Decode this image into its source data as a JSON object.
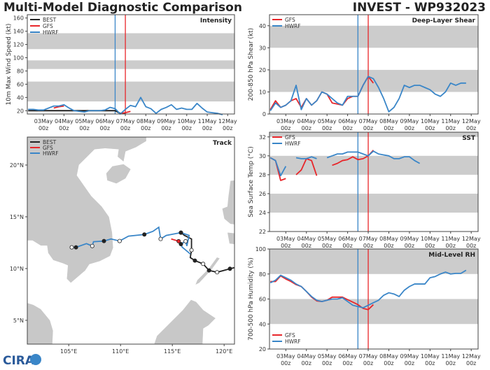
{
  "header": {
    "title": "Multi-Model Diagnostic Comparison",
    "storm": "INVEST - WP932023"
  },
  "colors": {
    "BEST": "#222222",
    "GFS": "#e8262a",
    "HWRF": "#3a86c8",
    "band": "#cccccc",
    "land": "#c8c8c8"
  },
  "time_start": "02May 06z",
  "time_step_hours": 6,
  "x_ticks": [
    "03May",
    "04May",
    "05May",
    "06May",
    "07May",
    "08May",
    "09May",
    "10May",
    "11May",
    "12May"
  ],
  "x_tick_hour": "00z",
  "xlim": [
    "02May 05z",
    "12May 08z"
  ],
  "chart_data": [
    {
      "key": "intensity",
      "type": "line",
      "title": "Intensity",
      "ylabel": "10m Max Wind Speed (kt)",
      "ylim": [
        15,
        165
      ],
      "yticks": [
        20,
        40,
        60,
        80,
        100,
        120,
        140,
        160
      ],
      "bands": [
        [
          34,
          64
        ],
        [
          83,
          96
        ],
        [
          113,
          137
        ]
      ],
      "legend": "top-left",
      "init_lines": [
        {
          "model": "HWRF",
          "time": "06May 12z"
        },
        {
          "model": "GFS",
          "time": "07May 00z"
        }
      ],
      "series": [
        {
          "name": "BEST",
          "values": [
            20,
            20,
            20,
            20,
            20,
            20,
            20,
            20,
            20,
            20,
            20,
            20,
            20,
            20,
            20,
            20,
            20,
            20,
            16,
            16
          ]
        },
        {
          "name": "GFS",
          "values": [
            null,
            null,
            null,
            null,
            null,
            24,
            26,
            27,
            null,
            null,
            null,
            null,
            null,
            null,
            null,
            null,
            null,
            null,
            16,
            17,
            19
          ]
        },
        {
          "name": "HWRF",
          "values": [
            22,
            22,
            21,
            21,
            24,
            27,
            27,
            29,
            24,
            20,
            19,
            18,
            20,
            20,
            20,
            21,
            25,
            23,
            15,
            22,
            28,
            26,
            40,
            26,
            23,
            16,
            22,
            25,
            29,
            22,
            24,
            22,
            22,
            31,
            24,
            18,
            17,
            16,
            14
          ]
        }
      ]
    },
    {
      "key": "shear",
      "type": "line",
      "title": "Deep-Layer Shear",
      "ylabel": "200-850 hPa Shear (kt)",
      "ylim": [
        0,
        45
      ],
      "yticks": [
        0,
        10,
        20,
        30,
        40
      ],
      "bands": [
        [
          10,
          20
        ],
        [
          30,
          40
        ]
      ],
      "legend": "top-left",
      "init_lines": [
        {
          "model": "HWRF",
          "time": "06May 12z"
        },
        {
          "model": "GFS",
          "time": "07May 00z"
        }
      ],
      "series": [
        {
          "name": "GFS",
          "values": [
            2,
            6,
            3,
            4,
            6,
            7,
            3,
            7,
            4,
            6,
            10,
            9,
            5,
            4.5,
            4,
            7,
            8,
            8,
            13,
            17,
            14
          ]
        },
        {
          "name": "HWRF",
          "values": [
            1.5,
            5,
            3,
            4,
            6,
            13,
            2,
            7,
            4,
            6,
            10,
            9,
            7,
            5,
            4,
            8,
            8,
            8,
            13,
            17,
            16,
            12,
            7,
            1,
            3,
            7,
            13,
            12,
            13,
            13,
            12,
            11,
            9,
            8,
            10,
            14,
            13,
            14,
            14
          ]
        }
      ]
    },
    {
      "key": "sst",
      "type": "line",
      "title": "SST",
      "ylabel": "Sea Surface Temp (°C)",
      "ylim": [
        22,
        32.5
      ],
      "yticks": [
        22,
        24,
        26,
        28,
        30,
        32
      ],
      "bands": [
        [
          24,
          26
        ],
        [
          28,
          30
        ],
        [
          32,
          32.5
        ]
      ],
      "legend": "top-left",
      "init_lines": [
        {
          "model": "HWRF",
          "time": "06May 12z"
        },
        {
          "model": "GFS",
          "time": "07May 00z"
        }
      ],
      "series": [
        {
          "name": "GFS",
          "values": [
            29.8,
            29.5,
            27.4,
            27.6,
            null,
            28.0,
            28.5,
            29.7,
            29.5,
            27.9,
            null,
            null,
            29.0,
            29.2,
            29.5,
            29.6,
            29.9,
            29.6,
            29.7,
            30.0,
            30.6
          ]
        },
        {
          "name": "HWRF",
          "values": [
            29.8,
            29.5,
            27.9,
            28.9,
            null,
            29.8,
            29.7,
            29.7,
            29.9,
            29.7,
            null,
            29.8,
            30.0,
            30.2,
            30.2,
            30.4,
            30.4,
            30.4,
            30.2,
            30.0,
            30.5,
            30.2,
            30.1,
            30.0,
            29.7,
            29.7,
            29.9,
            29.9,
            29.5,
            29.2
          ]
        }
      ]
    },
    {
      "key": "rh",
      "type": "line",
      "title": "Mid-Level RH",
      "ylabel": "700-500 hPa Humidity (%)",
      "ylim": [
        20,
        100
      ],
      "yticks": [
        20,
        40,
        60,
        80,
        100
      ],
      "bands": [
        [
          40,
          60
        ],
        [
          80,
          100
        ]
      ],
      "legend": "bottom-left",
      "init_lines": [
        {
          "model": "HWRF",
          "time": "06May 12z"
        },
        {
          "model": "GFS",
          "time": "07May 00z"
        }
      ],
      "series": [
        {
          "name": "GFS",
          "values": [
            74,
            74,
            78.5,
            76,
            74,
            71.5,
            70,
            66,
            61.5,
            58.5,
            58,
            59,
            61.5,
            61.5,
            61.5,
            59.5,
            57.5,
            55.5,
            52.5,
            51.5,
            55.5
          ]
        },
        {
          "name": "HWRF",
          "values": [
            73,
            75,
            79,
            77,
            75,
            72,
            70,
            66,
            62,
            59,
            58,
            59,
            60,
            60,
            61,
            58,
            55,
            54,
            53,
            55,
            57,
            59,
            63,
            65,
            64,
            62,
            67,
            70,
            72,
            72,
            72,
            77,
            78,
            80,
            81.5,
            80,
            80.5,
            80.5,
            83
          ]
        }
      ]
    }
  ],
  "track": {
    "title": "Track",
    "lon_range": [
      101,
      121
    ],
    "lat_range": [
      2.7,
      22.7
    ],
    "lon_ticks": [
      105,
      110,
      115,
      120
    ],
    "lat_ticks": [
      5,
      10,
      15,
      20
    ],
    "lon_suffix": "°E",
    "lat_suffix": "°N",
    "series": [
      {
        "name": "BEST",
        "points": [
          [
            121.0,
            10.09,
            null
          ],
          [
            120.56,
            9.98,
            "filled"
          ],
          [
            119.32,
            9.64,
            "open"
          ],
          [
            118.54,
            9.82,
            "filled"
          ],
          [
            117.97,
            10.45,
            "open"
          ],
          [
            117.18,
            10.77,
            "filled"
          ],
          [
            116.73,
            11.06,
            null
          ],
          [
            116.85,
            11.78,
            "open"
          ],
          [
            116.85,
            12.86,
            null
          ],
          [
            116.17,
            13.2,
            null
          ],
          [
            115.83,
            13.47,
            "filled"
          ]
        ]
      },
      {
        "name": "GFS",
        "points": [
          [
            114.89,
            12.86,
            null
          ],
          [
            115.61,
            12.64,
            "filled"
          ]
        ]
      },
      {
        "name": "HWRF",
        "points": [
          [
            116.73,
            11.4,
            null
          ],
          [
            116.62,
            11.51,
            null
          ],
          [
            115.95,
            12.07,
            null
          ],
          [
            115.83,
            12.36,
            "filled"
          ],
          [
            116.28,
            12.64,
            "open"
          ],
          [
            116.4,
            12.18,
            null
          ],
          [
            116.62,
            13.2,
            null
          ],
          [
            115.83,
            13.47,
            "filled"
          ],
          [
            114.41,
            13.2,
            null
          ],
          [
            113.87,
            12.86,
            "open"
          ],
          [
            113.69,
            13.99,
            null
          ],
          [
            113.13,
            13.6,
            null
          ],
          [
            112.3,
            13.29,
            "filled"
          ],
          [
            110.77,
            13.13,
            null
          ],
          [
            109.91,
            12.66,
            "open"
          ],
          [
            109.08,
            12.86,
            null
          ],
          [
            108.4,
            12.66,
            "filled"
          ],
          [
            107.39,
            12.59,
            null
          ],
          [
            107.27,
            12.18,
            "open"
          ],
          [
            106.71,
            12.41,
            null
          ],
          [
            105.7,
            12.05,
            "filled"
          ],
          [
            105.29,
            12.05,
            "open"
          ]
        ]
      }
    ]
  },
  "legend_models": [
    "BEST",
    "GFS",
    "HWRF"
  ],
  "logo": {
    "text": "CIRA"
  }
}
